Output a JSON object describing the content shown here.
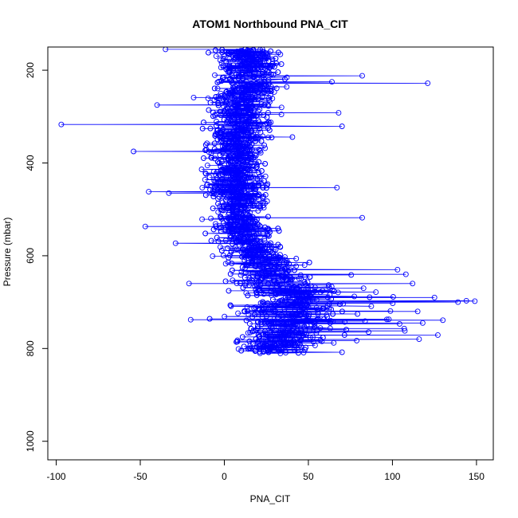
{
  "chart_data": {
    "type": "scatter",
    "title": "ATOM1 Northbound PNA_CIT",
    "xlabel": "PNA_CIT",
    "ylabel": "Pressure (mbar)",
    "xlim": [
      -105,
      160
    ],
    "ylim": [
      1040,
      150
    ],
    "y_reversed": true,
    "x_ticks": [
      -100,
      -50,
      0,
      50,
      100,
      150
    ],
    "y_ticks": [
      200,
      400,
      600,
      800,
      1000
    ],
    "grid": false,
    "legend": "none",
    "series": [
      {
        "style": "line+open-circles",
        "color": "#0000ff",
        "profile": [
          {
            "p": 155,
            "center": 15,
            "spread": 16
          },
          {
            "p": 200,
            "center": 14,
            "spread": 16
          },
          {
            "p": 250,
            "center": 12,
            "spread": 16
          },
          {
            "p": 300,
            "center": 10,
            "spread": 16
          },
          {
            "p": 350,
            "center": 9,
            "spread": 15
          },
          {
            "p": 400,
            "center": 7,
            "spread": 14
          },
          {
            "p": 450,
            "center": 7,
            "spread": 14
          },
          {
            "p": 500,
            "center": 8,
            "spread": 14
          },
          {
            "p": 550,
            "center": 12,
            "spread": 15
          },
          {
            "p": 600,
            "center": 20,
            "spread": 17
          },
          {
            "p": 650,
            "center": 30,
            "spread": 22
          },
          {
            "p": 700,
            "center": 40,
            "spread": 28
          },
          {
            "p": 750,
            "center": 40,
            "spread": 28
          },
          {
            "p": 800,
            "center": 30,
            "spread": 20
          },
          {
            "p": 812,
            "center": 30,
            "spread": 18
          }
        ],
        "outliers": [
          {
            "x": -97,
            "y": 317
          },
          {
            "x": 121,
            "y": 228
          },
          {
            "x": 82,
            "y": 212
          },
          {
            "x": -54,
            "y": 375
          },
          {
            "x": -47,
            "y": 537
          },
          {
            "x": -45,
            "y": 462
          },
          {
            "x": 82,
            "y": 518
          },
          {
            "x": 67,
            "y": 453
          },
          {
            "x": -35,
            "y": 155
          },
          {
            "x": 149,
            "y": 698
          },
          {
            "x": 144,
            "y": 697
          },
          {
            "x": 139,
            "y": 700
          },
          {
            "x": 130,
            "y": 739
          },
          {
            "x": 127,
            "y": 771
          },
          {
            "x": 125,
            "y": 690
          },
          {
            "x": 112,
            "y": 660
          },
          {
            "x": 108,
            "y": 640
          },
          {
            "x": 103,
            "y": 630
          },
          {
            "x": 115,
            "y": 720
          },
          {
            "x": 118,
            "y": 745
          },
          {
            "x": 107,
            "y": 757
          },
          {
            "x": 70,
            "y": 808
          },
          {
            "x": -20,
            "y": 738
          },
          {
            "x": -29,
            "y": 573
          },
          {
            "x": -21,
            "y": 660
          },
          {
            "x": 70,
            "y": 321
          },
          {
            "x": 68,
            "y": 292
          },
          {
            "x": 64,
            "y": 225
          },
          {
            "x": -40,
            "y": 275
          },
          {
            "x": -33,
            "y": 465
          }
        ]
      }
    ]
  }
}
